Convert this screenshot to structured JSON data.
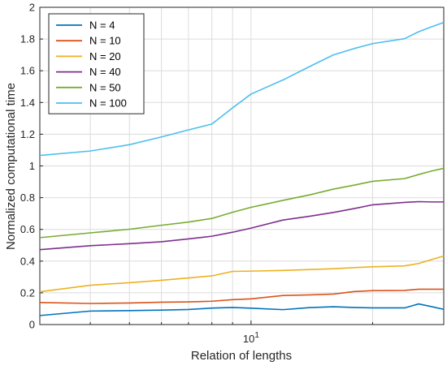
{
  "chart_data": {
    "type": "line",
    "xlabel": "Relation of lengths",
    "ylabel": "Normalized computational time",
    "xscale": "log",
    "xlim": [
      3,
      30
    ],
    "ylim": [
      0,
      2
    ],
    "grid": true,
    "legend_position": "top-left",
    "x_ticks": [
      {
        "value": 10,
        "base": "10",
        "exp": "1"
      }
    ],
    "y_ticks": [
      {
        "value": 0,
        "label": "0"
      },
      {
        "value": 0.2,
        "label": "0.2"
      },
      {
        "value": 0.4,
        "label": "0.4"
      },
      {
        "value": 0.6,
        "label": "0.6"
      },
      {
        "value": 0.8,
        "label": "0.8"
      },
      {
        "value": 1,
        "label": "1"
      },
      {
        "value": 1.2,
        "label": "1.2"
      },
      {
        "value": 1.4,
        "label": "1.4"
      },
      {
        "value": 1.6,
        "label": "1.6"
      },
      {
        "value": 1.8,
        "label": "1.8"
      },
      {
        "value": 2,
        "label": "2"
      }
    ],
    "x": [
      3,
      4,
      5,
      6,
      7,
      8,
      9,
      10,
      12,
      14,
      16,
      18,
      20,
      24,
      26,
      28,
      30
    ],
    "series": [
      {
        "name": "N = 4",
        "color": "#0072BD",
        "values": [
          0.057,
          0.085,
          0.088,
          0.091,
          0.095,
          0.104,
          0.108,
          0.103,
          0.094,
          0.107,
          0.112,
          0.108,
          0.105,
          0.105,
          0.13,
          0.113,
          0.096
        ]
      },
      {
        "name": "N = 10",
        "color": "#D95319",
        "values": [
          0.139,
          0.133,
          0.136,
          0.141,
          0.143,
          0.147,
          0.157,
          0.162,
          0.183,
          0.187,
          0.192,
          0.208,
          0.214,
          0.215,
          0.223,
          0.223,
          0.223
        ]
      },
      {
        "name": "N = 20",
        "color": "#EDB120",
        "values": [
          0.207,
          0.248,
          0.264,
          0.279,
          0.294,
          0.307,
          0.335,
          0.337,
          0.341,
          0.347,
          0.352,
          0.359,
          0.364,
          0.37,
          0.385,
          0.41,
          0.432
        ]
      },
      {
        "name": "N = 40",
        "color": "#7E2F8E",
        "values": [
          0.472,
          0.497,
          0.51,
          0.522,
          0.54,
          0.557,
          0.582,
          0.608,
          0.659,
          0.683,
          0.707,
          0.731,
          0.755,
          0.77,
          0.775,
          0.773,
          0.773
        ]
      },
      {
        "name": "N = 50",
        "color": "#77AC30",
        "values": [
          0.548,
          0.578,
          0.601,
          0.626,
          0.646,
          0.669,
          0.708,
          0.739,
          0.783,
          0.818,
          0.854,
          0.879,
          0.903,
          0.92,
          0.946,
          0.968,
          0.985
        ]
      },
      {
        "name": "N = 100",
        "color": "#4DBEEE",
        "values": [
          1.066,
          1.094,
          1.134,
          1.183,
          1.227,
          1.264,
          1.366,
          1.453,
          1.542,
          1.628,
          1.7,
          1.74,
          1.771,
          1.802,
          1.846,
          1.877,
          1.905
        ]
      }
    ]
  }
}
